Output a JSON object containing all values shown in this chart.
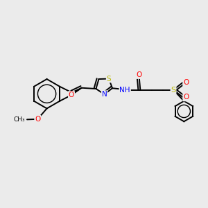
{
  "background_color": "#ebebeb",
  "bond_color": "#000000",
  "atom_colors": {
    "S": "#b8b800",
    "O": "#ff0000",
    "N": "#0000ff",
    "C": "#000000"
  },
  "figsize": [
    3.0,
    3.0
  ],
  "dpi": 100
}
